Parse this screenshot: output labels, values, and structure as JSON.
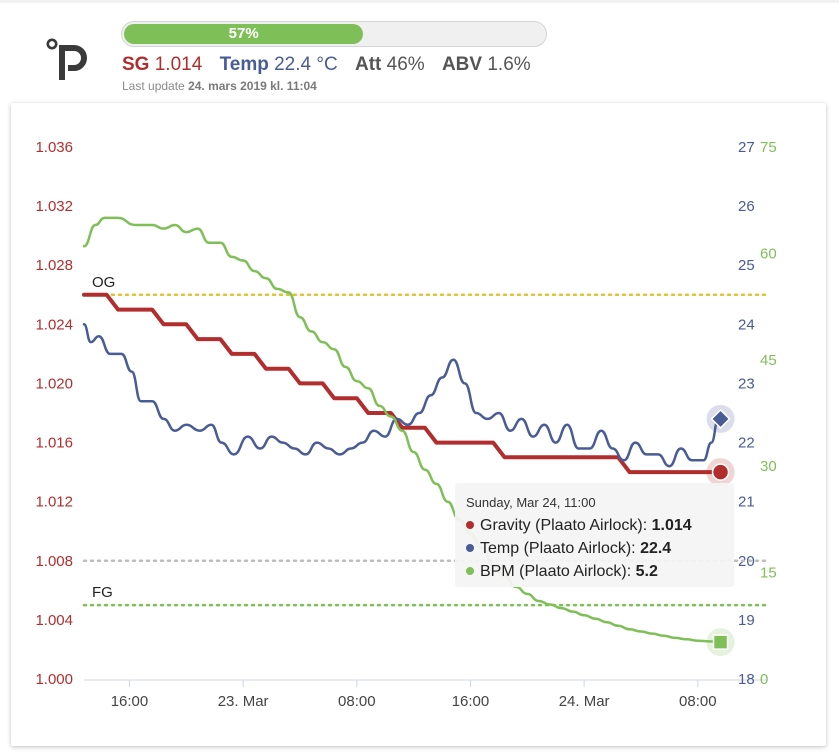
{
  "header": {
    "logo_icon": "plaato-logo-icon",
    "progress_label": "57%",
    "progress_value": 57,
    "sg_label": "SG",
    "sg_value": "1.014",
    "temp_label": "Temp",
    "temp_value": "22.4 °C",
    "att_label": "Att",
    "att_value": "46%",
    "abv_label": "ABV",
    "abv_value": "1.6%",
    "last_update_prefix": "Last update",
    "last_update_value": "24. mars 2019 kl. 11:04"
  },
  "colors": {
    "gravity": "#b22e2e",
    "temp": "#4a5c96",
    "bpm": "#7fbf58",
    "og_line": "#e0c23a",
    "fg_line": "#7fbf58",
    "progress": "#7fbf58"
  },
  "tooltip": {
    "title": "Sunday, Mar 24, 11:00",
    "rows": [
      {
        "label": "Gravity (Plaato Airlock): ",
        "value": "1.014"
      },
      {
        "label": "Temp (Plaato Airlock): ",
        "value": "22.4"
      },
      {
        "label": "BPM (Plaato Airlock): ",
        "value": "5.2"
      }
    ]
  },
  "chart_data": {
    "type": "line",
    "x_ticks": [
      {
        "t": 4,
        "label": "16:00"
      },
      {
        "t": 14,
        "label": "23. Mar"
      },
      {
        "t": 24,
        "label": "08:00"
      },
      {
        "t": 34,
        "label": "16:00"
      },
      {
        "t": 44,
        "label": "24. Mar"
      },
      {
        "t": 54,
        "label": "08:00"
      }
    ],
    "xlim": [
      0,
      60
    ],
    "y_left": {
      "ticks": [
        "1.036",
        "1.032",
        "1.028",
        "1.024",
        "1.020",
        "1.016",
        "1.012",
        "1.008",
        "1.004",
        "1.000"
      ],
      "range": [
        1.0,
        1.036
      ]
    },
    "y_right_temp": {
      "ticks": [
        "27",
        "26",
        "25",
        "24",
        "23",
        "22",
        "21",
        "20",
        "19",
        "18"
      ],
      "range": [
        18,
        27
      ]
    },
    "y_right_bpm": {
      "ticks": [
        "75",
        "60",
        "45",
        "30",
        "15",
        "0"
      ],
      "range": [
        0,
        75
      ]
    },
    "reference_lines": [
      {
        "label": "OG",
        "value": 1.026
      },
      {
        "label": "FG",
        "value": 1.005
      },
      {
        "label": "",
        "value": 1.008
      }
    ],
    "series": [
      {
        "name": "Gravity (Plaato Airlock)",
        "axis": "left",
        "points": [
          [
            0,
            1.026
          ],
          [
            2,
            1.026
          ],
          [
            3,
            1.025
          ],
          [
            6,
            1.025
          ],
          [
            7,
            1.024
          ],
          [
            9,
            1.024
          ],
          [
            10,
            1.023
          ],
          [
            12,
            1.023
          ],
          [
            13,
            1.022
          ],
          [
            15,
            1.022
          ],
          [
            16,
            1.021
          ],
          [
            18,
            1.021
          ],
          [
            19,
            1.02
          ],
          [
            21,
            1.02
          ],
          [
            22,
            1.019
          ],
          [
            24,
            1.019
          ],
          [
            25,
            1.018
          ],
          [
            27,
            1.018
          ],
          [
            28,
            1.017
          ],
          [
            30,
            1.017
          ],
          [
            31,
            1.016
          ],
          [
            36,
            1.016
          ],
          [
            37,
            1.015
          ],
          [
            47,
            1.015
          ],
          [
            48,
            1.014
          ],
          [
            56,
            1.014
          ]
        ]
      },
      {
        "name": "Temp (Plaato Airlock)",
        "axis": "right1",
        "points": [
          [
            0,
            24.0
          ],
          [
            0.6,
            23.7
          ],
          [
            1.3,
            23.8
          ],
          [
            2.3,
            23.5
          ],
          [
            3.3,
            23.5
          ],
          [
            4.2,
            23.2
          ],
          [
            5.0,
            22.7
          ],
          [
            6.0,
            22.7
          ],
          [
            7.0,
            22.4
          ],
          [
            8.0,
            22.2
          ],
          [
            9.0,
            22.3
          ],
          [
            10.2,
            22.2
          ],
          [
            11.2,
            22.3
          ],
          [
            12.1,
            22.0
          ],
          [
            13.2,
            21.8
          ],
          [
            14.4,
            22.1
          ],
          [
            15.5,
            21.9
          ],
          [
            16.5,
            22.1
          ],
          [
            17.5,
            22.0
          ],
          [
            18.5,
            21.9
          ],
          [
            19.5,
            21.8
          ],
          [
            20.5,
            22.0
          ],
          [
            21.5,
            21.9
          ],
          [
            22.5,
            21.8
          ],
          [
            23.5,
            21.9
          ],
          [
            24.5,
            22.0
          ],
          [
            25.5,
            22.2
          ],
          [
            26.5,
            22.1
          ],
          [
            27.5,
            22.4
          ],
          [
            28.5,
            22.3
          ],
          [
            29.5,
            22.5
          ],
          [
            30.5,
            22.8
          ],
          [
            31.5,
            23.1
          ],
          [
            32.5,
            23.4
          ],
          [
            33.5,
            23.0
          ],
          [
            34.5,
            22.5
          ],
          [
            35.5,
            22.4
          ],
          [
            36.5,
            22.5
          ],
          [
            37.5,
            22.2
          ],
          [
            38.5,
            22.4
          ],
          [
            39.5,
            22.1
          ],
          [
            40.5,
            22.3
          ],
          [
            41.5,
            22.0
          ],
          [
            42.5,
            22.3
          ],
          [
            43.5,
            21.9
          ],
          [
            44.5,
            21.9
          ],
          [
            45.5,
            22.2
          ],
          [
            46.5,
            21.9
          ],
          [
            47.5,
            21.7
          ],
          [
            48.5,
            22.0
          ],
          [
            49.5,
            21.8
          ],
          [
            50.5,
            21.8
          ],
          [
            51.5,
            21.6
          ],
          [
            52.5,
            21.9
          ],
          [
            53.5,
            21.7
          ],
          [
            54.5,
            21.7
          ],
          [
            55.2,
            22.0
          ],
          [
            55.8,
            22.4
          ]
        ]
      },
      {
        "name": "BPM (Plaato Airlock)",
        "axis": "right2",
        "points": [
          [
            0,
            61
          ],
          [
            1,
            64
          ],
          [
            1.8,
            65
          ],
          [
            3,
            65
          ],
          [
            4.5,
            64
          ],
          [
            6,
            64
          ],
          [
            7,
            63.5
          ],
          [
            8,
            64
          ],
          [
            9,
            63
          ],
          [
            10,
            63.5
          ],
          [
            11,
            61.5
          ],
          [
            12,
            61.5
          ],
          [
            13,
            59.5
          ],
          [
            14,
            59
          ],
          [
            15,
            57.5
          ],
          [
            16,
            56.5
          ],
          [
            17,
            55
          ],
          [
            18,
            54.5
          ],
          [
            19,
            51
          ],
          [
            20,
            49
          ],
          [
            21,
            47.5
          ],
          [
            22,
            46.5
          ],
          [
            23,
            44
          ],
          [
            24,
            42
          ],
          [
            25,
            41
          ],
          [
            26,
            38.5
          ],
          [
            27,
            37
          ],
          [
            28,
            35
          ],
          [
            29,
            32
          ],
          [
            30,
            29.5
          ],
          [
            31,
            27.5
          ],
          [
            32,
            25
          ],
          [
            33,
            22.5
          ],
          [
            34,
            20.5
          ],
          [
            35,
            18.5
          ],
          [
            36,
            16
          ],
          [
            37,
            14.5
          ],
          [
            38,
            13
          ],
          [
            39,
            12
          ],
          [
            40,
            11
          ],
          [
            41,
            10.5
          ],
          [
            42,
            10
          ],
          [
            43,
            9.5
          ],
          [
            44,
            9
          ],
          [
            45,
            8.5
          ],
          [
            46,
            8
          ],
          [
            47,
            7.5
          ],
          [
            48,
            7
          ],
          [
            49,
            6.7
          ],
          [
            50,
            6.4
          ],
          [
            51,
            6.1
          ],
          [
            52,
            5.8
          ],
          [
            53,
            5.6
          ],
          [
            54,
            5.4
          ],
          [
            55,
            5.3
          ],
          [
            56,
            5.2
          ]
        ]
      }
    ],
    "current_values": {
      "gravity": 1.014,
      "temp": 22.4,
      "bpm": 5.2,
      "t": 56
    }
  }
}
